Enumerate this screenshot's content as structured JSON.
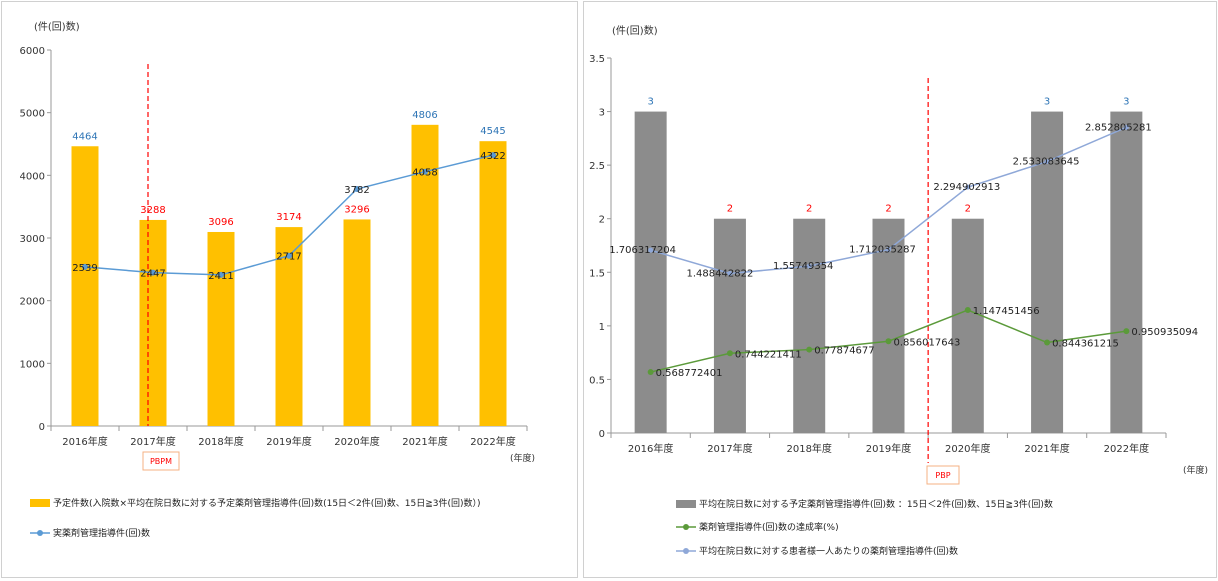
{
  "charts": [
    {
      "y_unit_label": "(件(回)数)",
      "x_unit_label": "(年度)",
      "marker_label": "PBPM",
      "colors": {
        "bar": "#FFC000",
        "line": "#5B9BD5",
        "label_blue": "#2E75B6",
        "label_red": "#FF0000",
        "marker": "#FF0000"
      },
      "chart_data": {
        "type": "bar",
        "categories": [
          "2016年度",
          "2017年度",
          "2018年度",
          "2019年度",
          "2020年度",
          "2021年度",
          "2022年度"
        ],
        "ylim": [
          0,
          6000
        ],
        "yticks": [
          0,
          1000,
          2000,
          3000,
          4000,
          5000,
          6000
        ],
        "marker_after_category": "2017年度",
        "series": [
          {
            "name": "予定件数(入院数×平均在院日数に対する予定薬剤管理指導件(回)数(15日＜2件(回)数、15日≧3件(回)数）)",
            "kind": "bar",
            "values": [
              4464,
              3288,
              3096,
              3174,
              3296,
              4806,
              4545
            ],
            "label_colors": [
              "blue",
              "red",
              "red",
              "red",
              "red",
              "blue",
              "blue"
            ]
          },
          {
            "name": "実薬剤管理指導件(回)数",
            "kind": "line",
            "values": [
              2539,
              2447,
              2411,
              2717,
              3782,
              4058,
              4322
            ]
          }
        ]
      }
    },
    {
      "y_unit_label": "(件(回)数)",
      "x_unit_label": "(年度)",
      "marker_label": "PBP",
      "colors": {
        "bar": "#8C8C8C",
        "line_green": "#5B9A3A",
        "line_blue": "#8FA8D8",
        "label_blue": "#2E75B6",
        "label_red": "#FF0000",
        "marker": "#FF0000"
      },
      "chart_data": {
        "type": "bar",
        "categories": [
          "2016年度",
          "2017年度",
          "2018年度",
          "2019年度",
          "2020年度",
          "2021年度",
          "2022年度"
        ],
        "ylim": [
          0,
          3.5
        ],
        "yticks": [
          "0",
          "0.5",
          "1",
          "1.5",
          "2",
          "2.5",
          "3",
          "3.5"
        ],
        "marker_after_category": "2019年度",
        "series": [
          {
            "name": "平均在院日数に対する予定薬剤管理指導件(回)数 ：15日＜2件(回)数、15日≧3件(回)数",
            "kind": "bar",
            "values": [
              3,
              2,
              2,
              2,
              2,
              3,
              3
            ],
            "label_colors": [
              "blue",
              "red",
              "red",
              "red",
              "red",
              "blue",
              "blue"
            ]
          },
          {
            "name": "薬剤管理指導件(回)数の達成率(%)",
            "kind": "line",
            "color": "green",
            "values": [
              0.568772401,
              0.744221411,
              0.77874677,
              0.856017643,
              1.147451456,
              0.844361215,
              0.950935094
            ],
            "labels": [
              "0.568772401",
              "0.744221411",
              "0.77874677",
              "0.856017643",
              "1.147451456",
              "0.844361215",
              "0.950935094"
            ]
          },
          {
            "name": "平均在院日数に対する患者様一人あたりの薬剤管理指導件(回)数",
            "kind": "line",
            "color": "blue",
            "values": [
              1.706317204,
              1.488442822,
              1.55749354,
              1.712035287,
              2.294902913,
              2.533083645,
              2.852805281
            ],
            "labels": [
              "1.706317204",
              "1.488442822",
              "1.55749354",
              "1.712035287",
              "2.294902913",
              "2.533083645",
              "2.852805281"
            ]
          }
        ]
      }
    }
  ]
}
